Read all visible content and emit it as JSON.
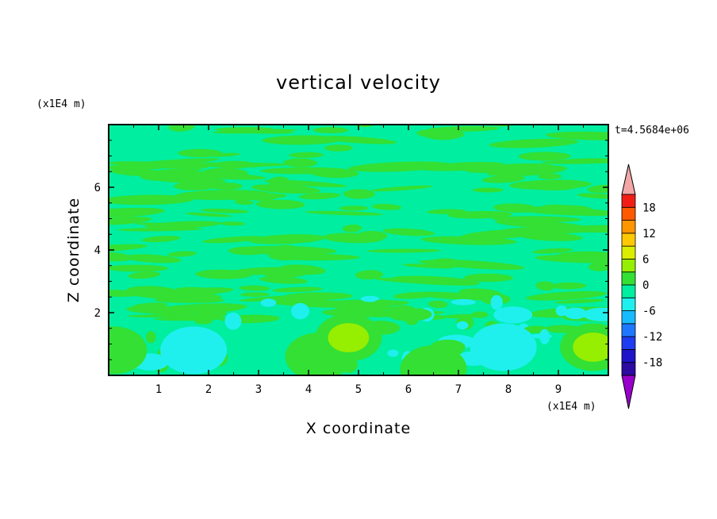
{
  "chart_data": {
    "type": "heatmap",
    "title": "vertical velocity",
    "xlabel": "X coordinate",
    "ylabel": "Z coordinate",
    "x_unit": "(x1E4 m)",
    "y_unit": "(x1E4 m)",
    "time_label": "t=4.5684e+06",
    "xlim": [
      0,
      10
    ],
    "ylim": [
      0,
      8
    ],
    "x_ticks": [
      "1",
      "2",
      "3",
      "4",
      "5",
      "6",
      "7",
      "8",
      "9"
    ],
    "y_ticks": [
      "2",
      "4",
      "6"
    ],
    "colorbar": {
      "levels": [
        -21,
        -18,
        -15,
        -12,
        -9,
        -6,
        -3,
        0,
        3,
        6,
        9,
        12,
        15,
        18,
        21
      ],
      "tick_labels": [
        "18",
        "12",
        "6",
        "0",
        "-6",
        "-12",
        "-18"
      ],
      "colors": [
        "#9900cc",
        "#2d0aa0",
        "#1f14c8",
        "#1e3cf0",
        "#1e78ff",
        "#19bbff",
        "#1ff0ee",
        "#00eea0",
        "#33e033",
        "#96ee00",
        "#dcee00",
        "#ffc800",
        "#ff9600",
        "#ff5a00",
        "#f01e14",
        "#f2a6a6"
      ]
    },
    "grid": false,
    "features": [
      {
        "x": 0.1,
        "z": 0.8,
        "w": 3.5,
        "label": "positive"
      },
      {
        "x": 1.7,
        "z": 0.8,
        "w": -6.5,
        "label": "negative"
      },
      {
        "x": 4.2,
        "z": 0.6,
        "w": 3.0,
        "label": "positive"
      },
      {
        "x": 4.8,
        "z": 1.2,
        "w": 4.0,
        "label": "positive"
      },
      {
        "x": 5.3,
        "z": 0.6,
        "w": -1.0,
        "label": "negative"
      },
      {
        "x": 6.5,
        "z": 0.2,
        "w": 3.0,
        "label": "positive"
      },
      {
        "x": 7.9,
        "z": 0.9,
        "w": -4.5,
        "label": "negative"
      },
      {
        "x": 9.7,
        "z": 0.9,
        "w": 4.0,
        "label": "positive"
      }
    ]
  }
}
